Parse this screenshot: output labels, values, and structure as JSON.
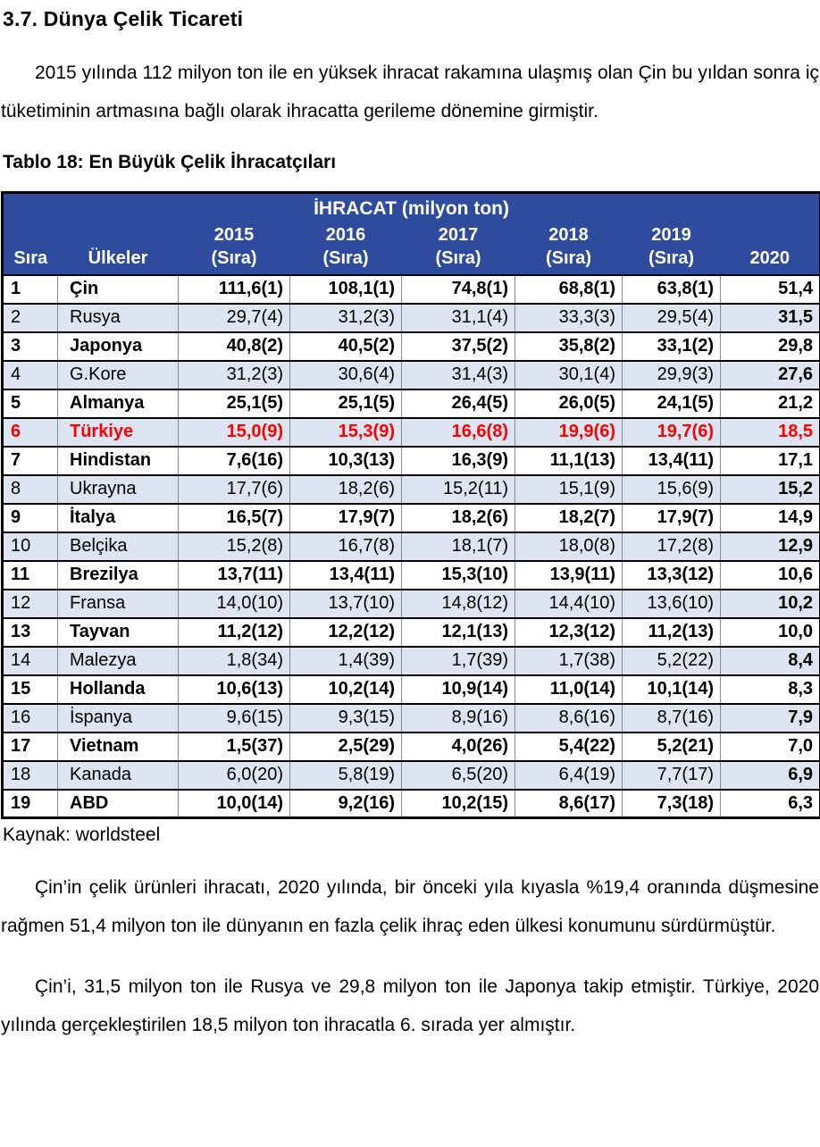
{
  "page": {
    "heading": "3.7. Dünya Çelik Ticareti",
    "paragraphs": {
      "intro": "2015 yılında 112 milyon ton ile en yüksek ihracat rakamına ulaşmış olan Çin bu yıldan sonra iç tüketiminin artmasına bağlı olarak ihracatta gerileme dönemine girmiştir.",
      "china": "Çin’in çelik ürünleri ihracatı, 2020 yılında, bir önceki yıla kıyasla %19,4 oranında düşmesine rağmen 51,4 milyon ton ile dünyanın en fazla çelik ihraç eden ülkesi konumunu sürdürmüştür.",
      "ranking": "Çin’i, 31,5 milyon ton ile Rusya ve 29,8 milyon ton ile Japonya takip etmiştir. Türkiye, 2020 yılında gerçekleştirilen 18,5 milyon ton ihracatla 6. sırada yer almıştır."
    },
    "table_caption": "Tablo 18: En Büyük Çelik İhracatçıları",
    "source": "Kaynak: worldsteel"
  },
  "table": {
    "title": "İHRACAT (milyon ton)",
    "columns": [
      {
        "label": "Sıra"
      },
      {
        "label": "Ülkeler"
      },
      {
        "label": "2015",
        "sub": "(Sıra)"
      },
      {
        "label": "2016",
        "sub": "(Sıra)"
      },
      {
        "label": "2017",
        "sub": "(Sıra)"
      },
      {
        "label": "2018",
        "sub": "(Sıra)"
      },
      {
        "label": "2019",
        "sub": "(Sıra)"
      },
      {
        "label": "2020"
      }
    ],
    "rows": [
      {
        "emphasis": "bold",
        "cells": [
          "1",
          "Çin",
          "111,6(1)",
          "108,1(1)",
          "74,8(1)",
          "68,8(1)",
          "63,8(1)",
          "51,4"
        ]
      },
      {
        "emphasis": "normal",
        "cells": [
          "2",
          "Rusya",
          "29,7(4)",
          "31,2(3)",
          "31,1(4)",
          "33,3(3)",
          "29,5(4)",
          "31,5"
        ]
      },
      {
        "emphasis": "bold",
        "cells": [
          "3",
          "Japonya",
          "40,8(2)",
          "40,5(2)",
          "37,5(2)",
          "35,8(2)",
          "33,1(2)",
          "29,8"
        ]
      },
      {
        "emphasis": "normal",
        "cells": [
          "4",
          "G.Kore",
          "31,2(3)",
          "30,6(4)",
          "31,4(3)",
          "30,1(4)",
          "29,9(3)",
          "27,6"
        ]
      },
      {
        "emphasis": "bold",
        "cells": [
          "5",
          "Almanya",
          "25,1(5)",
          "25,1(5)",
          "26,4(5)",
          "26,0(5)",
          "24,1(5)",
          "21,2"
        ]
      },
      {
        "emphasis": "red",
        "cells": [
          "6",
          "Türkiye",
          "15,0(9)",
          "15,3(9)",
          "16,6(8)",
          "19,9(6)",
          "19,7(6)",
          "18,5"
        ]
      },
      {
        "emphasis": "bold",
        "cells": [
          "7",
          "Hindistan",
          "7,6(16)",
          "10,3(13)",
          "16,3(9)",
          "11,1(13)",
          "13,4(11)",
          "17,1"
        ]
      },
      {
        "emphasis": "normal",
        "cells": [
          "8",
          "Ukrayna",
          "17,7(6)",
          "18,2(6)",
          "15,2(11)",
          "15,1(9)",
          "15,6(9)",
          "15,2"
        ]
      },
      {
        "emphasis": "bold",
        "cells": [
          "9",
          "İtalya",
          "16,5(7)",
          "17,9(7)",
          "18,2(6)",
          "18,2(7)",
          "17,9(7)",
          "14,9"
        ]
      },
      {
        "emphasis": "normal",
        "cells": [
          "10",
          "Belçika",
          "15,2(8)",
          "16,7(8)",
          "18,1(7)",
          "18,0(8)",
          "17,2(8)",
          "12,9"
        ]
      },
      {
        "emphasis": "bold",
        "cells": [
          "11",
          "Brezilya",
          "13,7(11)",
          "13,4(11)",
          "15,3(10)",
          "13,9(11)",
          "13,3(12)",
          "10,6"
        ]
      },
      {
        "emphasis": "normal",
        "cells": [
          "12",
          "Fransa",
          "14,0(10)",
          "13,7(10)",
          "14,8(12)",
          "14,4(10)",
          "13,6(10)",
          "10,2"
        ]
      },
      {
        "emphasis": "bold",
        "cells": [
          "13",
          "Tayvan",
          "11,2(12)",
          "12,2(12)",
          "12,1(13)",
          "12,3(12)",
          "11,2(13)",
          "10,0"
        ]
      },
      {
        "emphasis": "normal",
        "cells": [
          "14",
          "Malezya",
          "1,8(34)",
          "1,4(39)",
          "1,7(39)",
          "1,7(38)",
          "5,2(22)",
          "8,4"
        ]
      },
      {
        "emphasis": "bold",
        "cells": [
          "15",
          "Hollanda",
          "10,6(13)",
          "10,2(14)",
          "10,9(14)",
          "11,0(14)",
          "10,1(14)",
          "8,3"
        ]
      },
      {
        "emphasis": "normal",
        "cells": [
          "16",
          "İspanya",
          "9,6(15)",
          "9,3(15)",
          "8,9(16)",
          "8,6(16)",
          "8,7(16)",
          "7,9"
        ]
      },
      {
        "emphasis": "bold",
        "cells": [
          "17",
          "Vietnam",
          "1,5(37)",
          "2,5(29)",
          "4,0(26)",
          "5,4(22)",
          "5,2(21)",
          "7,0"
        ]
      },
      {
        "emphasis": "normal",
        "cells": [
          "18",
          "Kanada",
          "6,0(20)",
          "5,8(19)",
          "6,5(20)",
          "6,4(19)",
          "7,7(17)",
          "6,9"
        ]
      },
      {
        "emphasis": "bold",
        "cells": [
          "19",
          "ABD",
          "10,0(14)",
          "9,2(16)",
          "10,2(15)",
          "8,6(17)",
          "7,3(18)",
          "6,3"
        ]
      }
    ]
  },
  "colors": {
    "header_bg": "#2E4B9E",
    "header_text": "#FFFFFF",
    "stripe_bg": "#DCE5F1",
    "highlight_text": "#FF0000",
    "body_text": "#000000"
  }
}
